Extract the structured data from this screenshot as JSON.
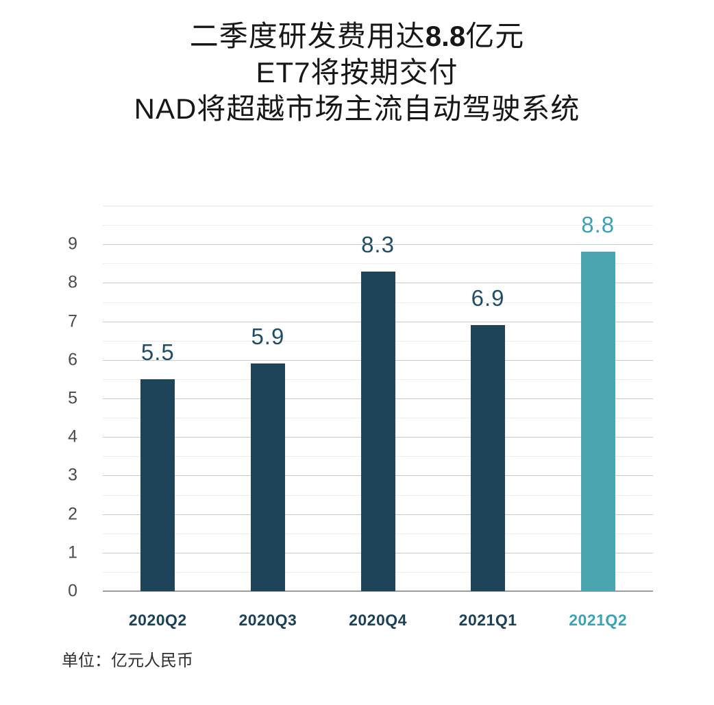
{
  "title": {
    "line1_prefix": "二季度研发费用达",
    "line1_bold": "8.8",
    "line1_suffix": "亿元",
    "line2": "ET7将按期交付",
    "line3": "NAD将超越市场主流自动驾驶系统"
  },
  "footer": {
    "unit_label": "单位：亿元人民币"
  },
  "chart_data": {
    "type": "bar",
    "title": "二季度研发费用达8.8亿元 ET7将按期交付 NAD将超越市场主流自动驾驶系统",
    "categories": [
      "2020Q2",
      "2020Q3",
      "2020Q4",
      "2021Q1",
      "2021Q2"
    ],
    "values": [
      5.5,
      5.9,
      8.3,
      6.9,
      8.8
    ],
    "value_labels": [
      "5.5",
      "5.9",
      "8.3",
      "6.9",
      "8.8"
    ],
    "xlabel": "",
    "ylabel": "单位：亿元人民币",
    "ylim": [
      0,
      9
    ],
    "y_ticks": [
      0,
      1,
      2,
      3,
      4,
      5,
      6,
      7,
      8,
      9
    ],
    "grid": {
      "major": true,
      "minor": true,
      "minor_interval": 0.5
    },
    "legend": "none",
    "highlight_index": 4,
    "colors": {
      "bar": "#1d4458",
      "bar_highlight": "#4aa5b1",
      "value_label": "#214d67",
      "value_label_highlight": "#3ba3b4",
      "category_label": "#1b4158",
      "category_label_highlight": "#3ba3b4"
    }
  }
}
